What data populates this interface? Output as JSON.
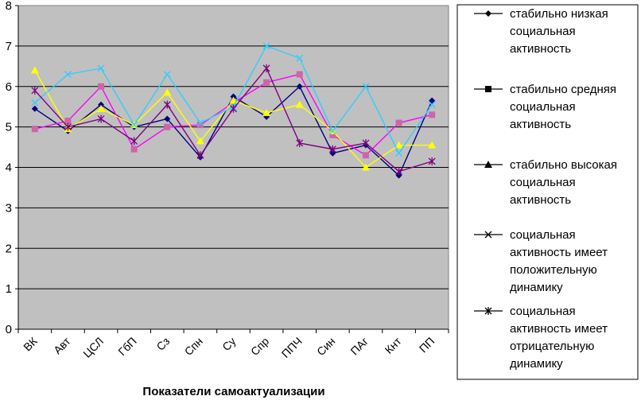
{
  "chart_data": {
    "type": "line",
    "title": "",
    "xlabel": "Показатели самоактуализации",
    "ylabel": "",
    "ylim": [
      0,
      8
    ],
    "yticks": [
      0,
      1,
      2,
      3,
      4,
      5,
      6,
      7,
      8
    ],
    "grid": true,
    "legend_position": "right",
    "categories": [
      "ВК",
      "Авт",
      "ЦСЛ",
      "ГбП",
      "Сз",
      "Спн",
      "Су",
      "Спр",
      "ППЧ",
      "Син",
      "ПАг",
      "Кнт",
      "ПП"
    ],
    "series": [
      {
        "name": "стабильно низкая социальная активность",
        "legend_lines": [
          "стабильно низкая",
          "социальная",
          "активность"
        ],
        "marker": "diamond",
        "line_color": "#000080",
        "marker_color": "#000080",
        "values": [
          5.45,
          4.9,
          5.55,
          5.0,
          5.2,
          4.25,
          5.75,
          5.25,
          6.0,
          4.35,
          4.55,
          3.8,
          5.65
        ]
      },
      {
        "name": "стабильно средняя социальная активность",
        "legend_lines": [
          "стабильно средняя",
          "социальная",
          "активность"
        ],
        "marker": "square",
        "line_color": "#ff00ff",
        "marker_color": "#cc66aa",
        "values": [
          4.95,
          5.15,
          6.0,
          4.45,
          5.0,
          5.05,
          5.6,
          6.1,
          6.3,
          4.8,
          4.3,
          5.1,
          5.3
        ]
      },
      {
        "name": "стабильно высокая социальная активность",
        "legend_lines": [
          "стабильно высокая",
          "социальная",
          "активность"
        ],
        "marker": "triangle",
        "line_color": "#ffff00",
        "marker_color": "#ffff00",
        "values": [
          6.4,
          4.95,
          5.45,
          5.05,
          5.85,
          4.65,
          5.65,
          5.35,
          5.55,
          4.9,
          4.0,
          4.55,
          4.55
        ]
      },
      {
        "name": "социальная активность имеет положительную динамику",
        "legend_lines": [
          "социальная",
          "активность имеет",
          "положительную",
          "динамику"
        ],
        "marker": "x",
        "line_color": "#33ccff",
        "marker_color": "#33ccff",
        "values": [
          5.6,
          6.3,
          6.45,
          5.05,
          6.3,
          5.1,
          5.5,
          7.0,
          6.7,
          4.9,
          6.0,
          4.35,
          5.55
        ]
      },
      {
        "name": "социальная активность имеет отрицательную динамику",
        "legend_lines": [
          "социальная",
          "активность имеет",
          "отрицательную",
          "динамику"
        ],
        "marker": "asterisk",
        "line_color": "#800080",
        "marker_color": "#800080",
        "values": [
          5.9,
          5.0,
          5.2,
          4.65,
          5.55,
          4.3,
          5.45,
          6.45,
          4.6,
          4.45,
          4.6,
          3.9,
          4.15
        ]
      }
    ]
  }
}
